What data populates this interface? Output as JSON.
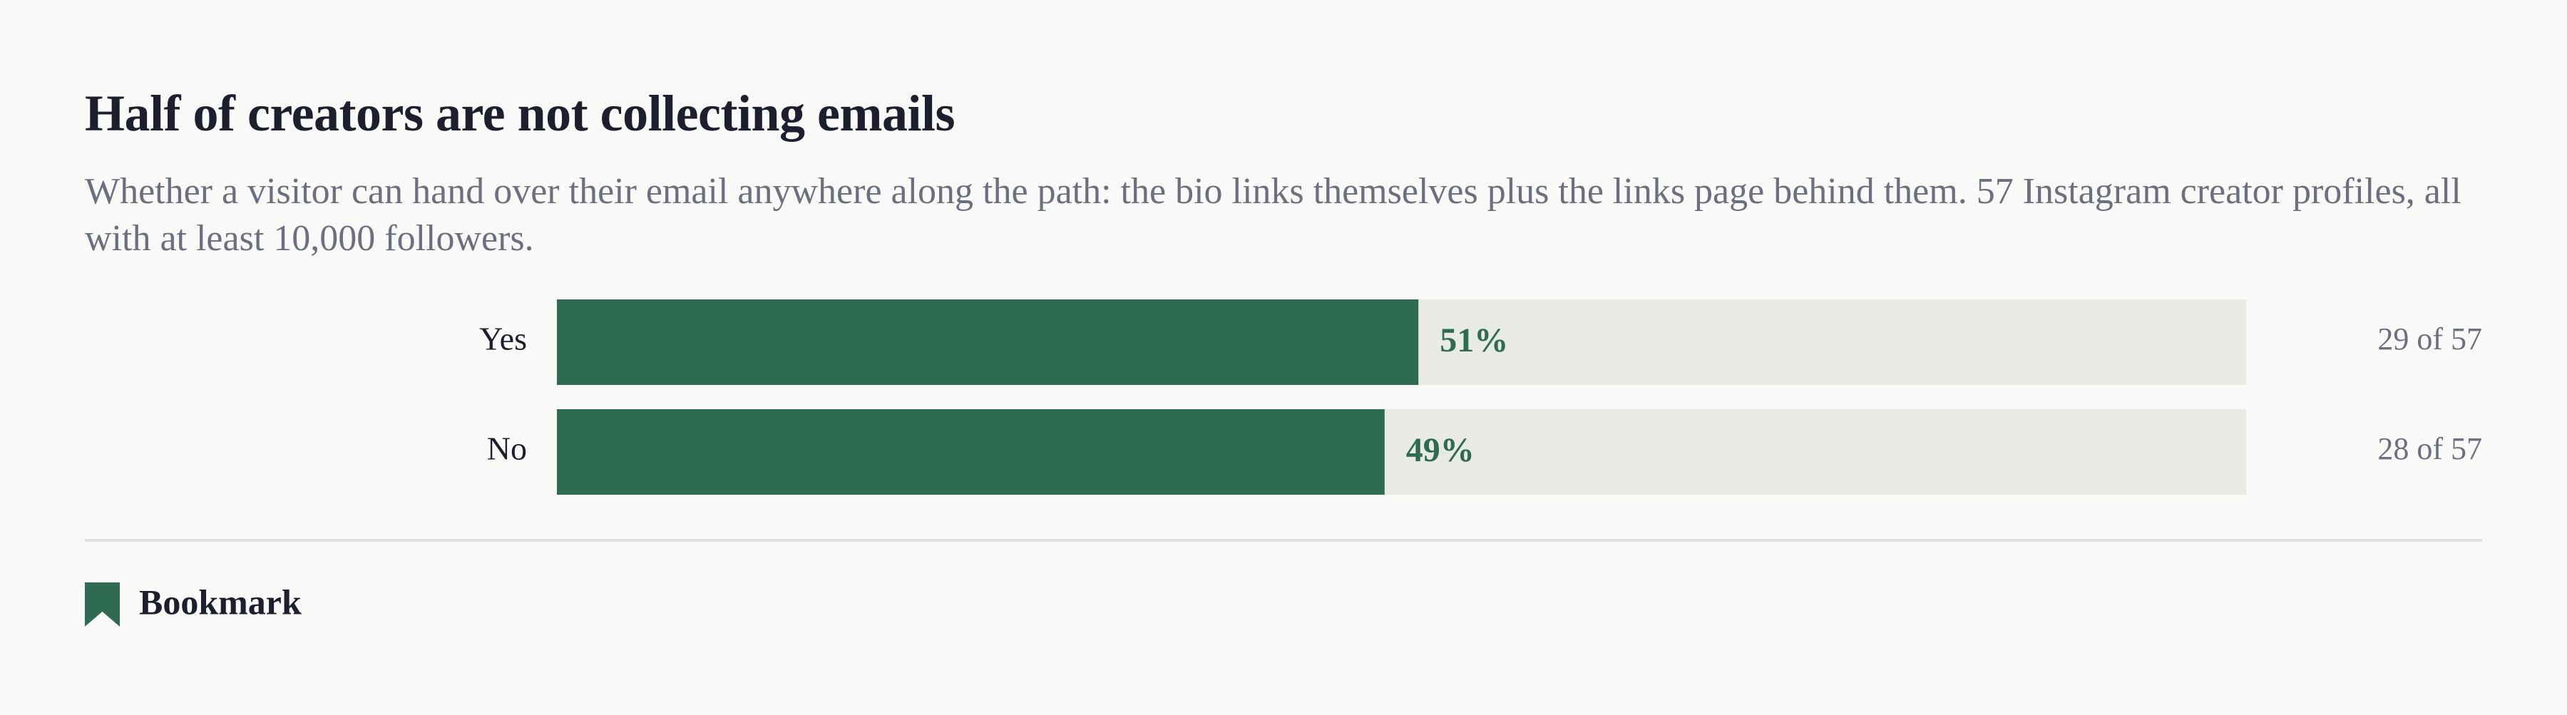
{
  "chart_data": {
    "type": "bar",
    "title": "Half of creators are not collecting emails",
    "subtitle": "Whether a visitor can hand over their email anywhere along the path: the bio links themselves plus the links page behind them. 57 Instagram creator profiles, all with at least 10,000 followers.",
    "categories": [
      "Yes",
      "No"
    ],
    "values": [
      51,
      49
    ],
    "value_labels": [
      "51%",
      "49%"
    ],
    "count_labels": [
      "29 of 57",
      "28 of 57"
    ],
    "xlim": [
      0,
      100
    ],
    "color": "#2e6b50",
    "track_color": "#e8eae5"
  },
  "bookmark": {
    "label": "Bookmark"
  }
}
